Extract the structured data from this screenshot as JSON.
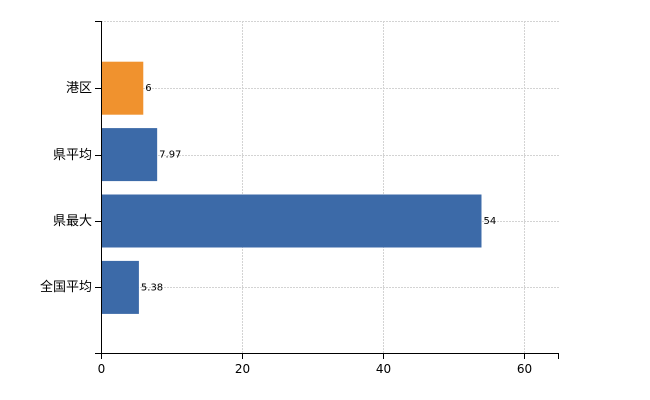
{
  "chart_data": {
    "type": "bar",
    "orientation": "horizontal",
    "categories": [
      "港区",
      "県平均",
      "県最大",
      "全国平均"
    ],
    "values": [
      6,
      7.97,
      54,
      5.38
    ],
    "value_labels": [
      "6",
      "7.97",
      "54",
      "5.38"
    ],
    "bar_colors": [
      "#f0922e",
      "#3c6aa8",
      "#3c6aa8",
      "#3c6aa8"
    ],
    "xlim": [
      0,
      65
    ],
    "x_ticks": [
      0,
      20,
      40,
      60
    ],
    "x_tick_labels": [
      "0",
      "20",
      "40",
      "60"
    ],
    "grid": true,
    "legend": "none"
  }
}
